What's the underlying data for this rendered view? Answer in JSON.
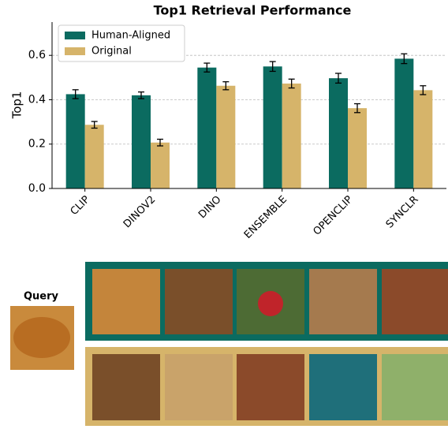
{
  "chart_data": {
    "type": "bar",
    "title": "Top1 Retrieval Performance",
    "y_label": "Top1",
    "categories": [
      "CLIP",
      "DINOV2",
      "DINO",
      "ENSEMBLE",
      "OPENCLIP",
      "SYNCLR"
    ],
    "series": [
      {
        "name": "Human-Aligned",
        "color": "#0b6b60",
        "values": [
          0.425,
          0.42,
          0.545,
          0.55,
          0.497,
          0.585
        ],
        "errors": [
          0.02,
          0.015,
          0.02,
          0.022,
          0.022,
          0.022
        ]
      },
      {
        "name": "Original",
        "color": "#d6b46a",
        "values": [
          0.287,
          0.207,
          0.463,
          0.473,
          0.362,
          0.443
        ],
        "errors": [
          0.015,
          0.015,
          0.018,
          0.02,
          0.02,
          0.02
        ]
      }
    ],
    "ylim": [
      0,
      0.75
    ],
    "yticks": [
      {
        "value": 0,
        "label": "0.0"
      },
      0.2,
      0.4,
      0.6
    ],
    "grid": true,
    "legend": "upper-left"
  },
  "query_label": "Query"
}
